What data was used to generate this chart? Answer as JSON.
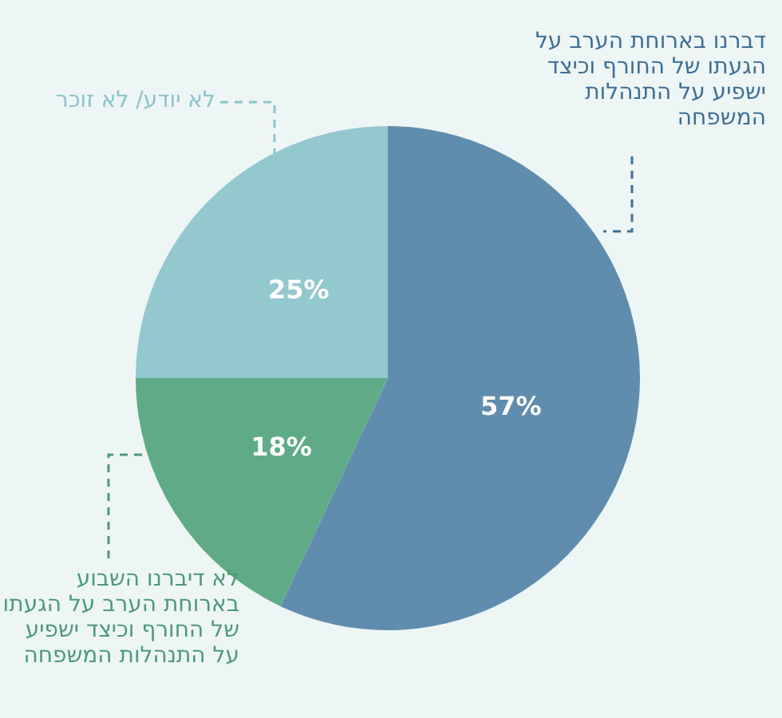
{
  "chart_data": {
    "type": "pie",
    "categories": [
      "דברנו בארוחת הערב על הגעתו של החורף וכיצד ישפיע על התנהלות המשפחה",
      "לא דיברנו השבוע בארוחת הערב על הגעתו של החורף וכיצד ישפיע על התנהלות המשפחה",
      "לא יודע/ לא זוכר"
    ],
    "values": [
      57,
      18,
      25
    ],
    "colors": [
      "#608dae",
      "#5fab87",
      "#93c8ce"
    ],
    "value_labels": [
      "57%",
      "18%",
      "25%"
    ]
  }
}
